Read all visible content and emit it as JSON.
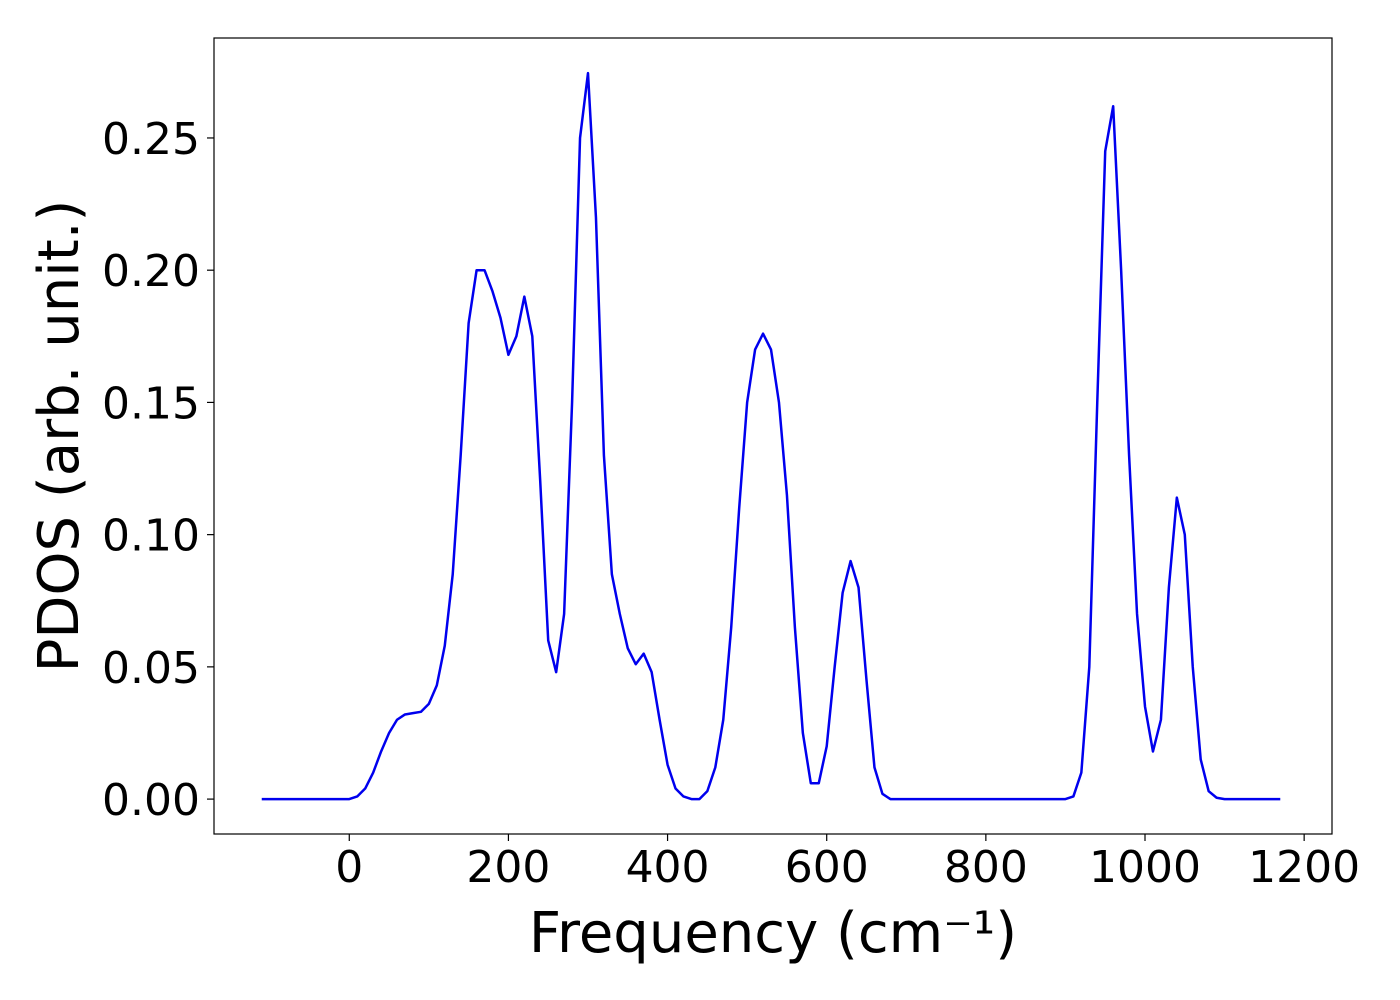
{
  "chart_data": {
    "type": "line",
    "xlabel": "Frequency (cm⁻¹)",
    "ylabel": "PDOS (arb. unit.)",
    "x": [
      -110,
      -100,
      -90,
      -80,
      -70,
      -60,
      -50,
      -40,
      -30,
      -20,
      -10,
      0,
      10,
      20,
      30,
      40,
      50,
      60,
      70,
      80,
      90,
      100,
      110,
      120,
      130,
      140,
      150,
      160,
      170,
      180,
      190,
      200,
      210,
      220,
      230,
      240,
      250,
      260,
      270,
      280,
      290,
      300,
      310,
      320,
      330,
      340,
      350,
      360,
      370,
      380,
      390,
      400,
      410,
      420,
      430,
      440,
      450,
      460,
      470,
      480,
      490,
      500,
      510,
      520,
      530,
      540,
      550,
      560,
      570,
      580,
      590,
      600,
      610,
      620,
      630,
      640,
      650,
      660,
      670,
      680,
      690,
      700,
      710,
      720,
      730,
      740,
      750,
      760,
      770,
      780,
      790,
      800,
      810,
      820,
      830,
      840,
      850,
      860,
      870,
      880,
      890,
      900,
      910,
      920,
      930,
      940,
      950,
      960,
      970,
      980,
      990,
      1000,
      1010,
      1020,
      1030,
      1040,
      1050,
      1060,
      1070,
      1080,
      1090,
      1100,
      1110,
      1120,
      1130,
      1140,
      1150,
      1160,
      1170
    ],
    "series": [
      {
        "name": "PDOS",
        "color": "#0000ee",
        "values": [
          0,
          0,
          0,
          0,
          0,
          0,
          0,
          0,
          0,
          0,
          0,
          0,
          0.001,
          0.004,
          0.01,
          0.018,
          0.025,
          0.03,
          0.032,
          0.0325,
          0.033,
          0.036,
          0.043,
          0.058,
          0.085,
          0.13,
          0.18,
          0.2,
          0.2,
          0.192,
          0.182,
          0.168,
          0.175,
          0.19,
          0.175,
          0.12,
          0.06,
          0.048,
          0.07,
          0.15,
          0.25,
          0.2745,
          0.22,
          0.13,
          0.085,
          0.07,
          0.057,
          0.051,
          0.055,
          0.048,
          0.03,
          0.013,
          0.004,
          0.001,
          0,
          0,
          0.003,
          0.012,
          0.03,
          0.065,
          0.11,
          0.15,
          0.17,
          0.176,
          0.17,
          0.15,
          0.115,
          0.065,
          0.025,
          0.006,
          0.006,
          0.02,
          0.05,
          0.078,
          0.09,
          0.08,
          0.045,
          0.012,
          0.002,
          0,
          0,
          0,
          0,
          0,
          0,
          0,
          0,
          0,
          0,
          0,
          0,
          0,
          0,
          0,
          0,
          0,
          0,
          0,
          0,
          0,
          0,
          0,
          0.001,
          0.01,
          0.05,
          0.15,
          0.245,
          0.262,
          0.2,
          0.13,
          0.07,
          0.035,
          0.018,
          0.03,
          0.08,
          0.114,
          0.1,
          0.05,
          0.015,
          0.003,
          0.0005,
          0,
          0,
          0,
          0,
          0,
          0,
          0,
          0
        ]
      }
    ],
    "xlim": [
      -170,
      1235
    ],
    "ylim": [
      -0.0132,
      0.2878
    ],
    "xticks": [
      0,
      200,
      400,
      600,
      800,
      1000,
      1200
    ],
    "yticks": [
      {
        "value": 0,
        "label": "0.00"
      },
      {
        "value": 0.05,
        "label": "0.05"
      },
      {
        "value": 0.1,
        "label": "0.10"
      },
      {
        "value": 0.15,
        "label": "0.15"
      },
      {
        "value": 0.2,
        "label": "0.20"
      },
      {
        "value": 0.25,
        "label": "0.25"
      }
    ],
    "grid": false
  }
}
